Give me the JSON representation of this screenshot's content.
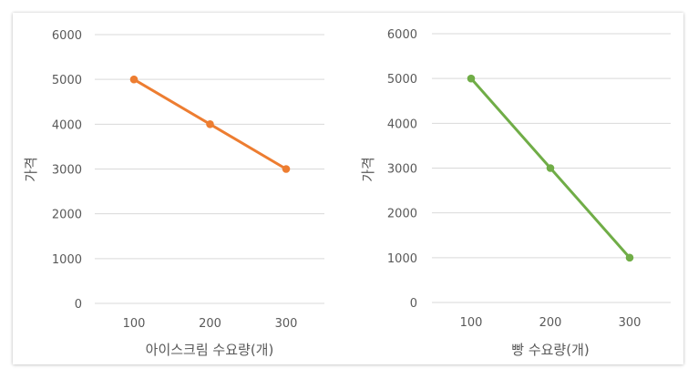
{
  "chart_data": [
    {
      "type": "line",
      "title": "",
      "xlabel": "아이스크림 수요량(개)",
      "ylabel": "가격",
      "categories": [
        "100",
        "200",
        "300"
      ],
      "x": [
        100,
        200,
        300
      ],
      "ylim": [
        0,
        6000
      ],
      "yticks": [
        0,
        1000,
        2000,
        3000,
        4000,
        5000,
        6000
      ],
      "grid": true,
      "legend": "none",
      "series": [
        {
          "values": [
            5000,
            4000,
            3000
          ],
          "color": "#ED7D31"
        }
      ]
    },
    {
      "type": "line",
      "title": "",
      "xlabel": "빵 수요량(개)",
      "ylabel": "가격",
      "categories": [
        "100",
        "200",
        "300"
      ],
      "x": [
        100,
        200,
        300
      ],
      "ylim": [
        0,
        6000
      ],
      "yticks": [
        0,
        1000,
        2000,
        3000,
        4000,
        5000,
        6000
      ],
      "grid": true,
      "legend": "none",
      "series": [
        {
          "values": [
            5000,
            3000,
            1000
          ],
          "color": "#70AD47"
        }
      ]
    }
  ],
  "colors": {
    "gridline": "#D9D9D9",
    "text": "#595959"
  }
}
